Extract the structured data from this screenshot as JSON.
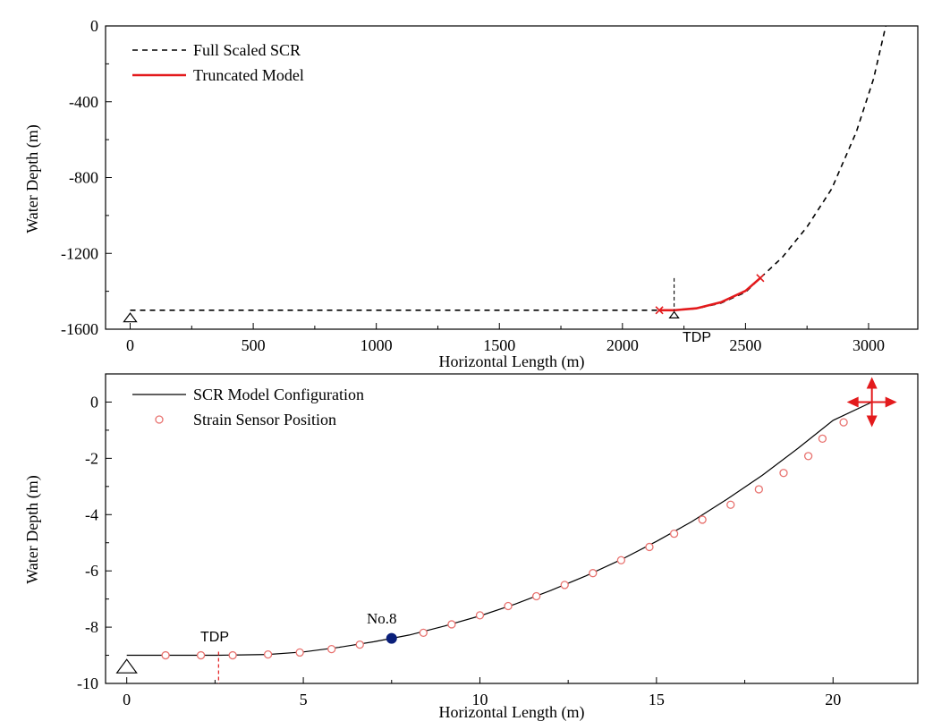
{
  "chart_data": [
    {
      "type": "line",
      "xlabel": "Horizontal Length (m)",
      "ylabel": "Water Depth (m)",
      "xlim": [
        -100,
        3200
      ],
      "ylim": [
        -1600,
        0
      ],
      "xticks": [
        0,
        500,
        1000,
        1500,
        2000,
        2500,
        3000
      ],
      "yticks": [
        0,
        -400,
        -800,
        -1200,
        -1600
      ],
      "xtick_labels": [
        "0",
        "500",
        "1000",
        "1500",
        "2000",
        "2500",
        "3000"
      ],
      "ytick_labels": [
        "0",
        "-400",
        "-800",
        "-1200",
        "-1600"
      ],
      "legend_position": "top-left",
      "series": [
        {
          "name": "Full Scaled SCR",
          "style": "dashed",
          "color": "#000000",
          "points": [
            [
              0,
              -1500
            ],
            [
              2150,
              -1500
            ],
            [
              2210,
              -1500
            ],
            [
              2300,
              -1492
            ],
            [
              2400,
              -1462
            ],
            [
              2500,
              -1405
            ],
            [
              2560,
              -1330
            ],
            [
              2650,
              -1220
            ],
            [
              2750,
              -1060
            ],
            [
              2850,
              -860
            ],
            [
              2950,
              -560
            ],
            [
              3020,
              -280
            ],
            [
              3070,
              0
            ]
          ]
        },
        {
          "name": "Truncated Model",
          "style": "solid",
          "color": "#e31a1c",
          "points": [
            [
              2150,
              -1500
            ],
            [
              2210,
              -1500
            ],
            [
              2300,
              -1490
            ],
            [
              2400,
              -1458
            ],
            [
              2500,
              -1398
            ],
            [
              2560,
              -1330
            ]
          ]
        }
      ],
      "markers": [
        {
          "kind": "x",
          "x": 2150,
          "y": -1500,
          "color": "#e31a1c"
        },
        {
          "kind": "x",
          "x": 2560,
          "y": -1330,
          "color": "#e31a1c"
        }
      ],
      "anchor": {
        "x": 0,
        "y": -1525
      },
      "tdp": {
        "label": "TDP",
        "x": 2210,
        "y": -1500
      }
    },
    {
      "type": "line",
      "xlabel": "Horizontal Length (m)",
      "ylabel": "Water Depth (m)",
      "xlim": [
        -0.6,
        22.4
      ],
      "ylim": [
        -10,
        1
      ],
      "xticks": [
        0,
        5,
        10,
        15,
        20
      ],
      "yticks": [
        0,
        -2,
        -4,
        -6,
        -8,
        -10
      ],
      "xtick_labels": [
        "0",
        "5",
        "10",
        "15",
        "20"
      ],
      "ytick_labels": [
        "0",
        "-2",
        "-4",
        "-6",
        "-8",
        "-10"
      ],
      "legend_position": "top-left",
      "series": [
        {
          "name": "SCR Model Configuration",
          "style": "solid",
          "color": "#000000",
          "points": [
            [
              0,
              -9.0
            ],
            [
              2.6,
              -9.0
            ],
            [
              4,
              -8.97
            ],
            [
              5,
              -8.88
            ],
            [
              6,
              -8.72
            ],
            [
              7,
              -8.52
            ],
            [
              8,
              -8.28
            ],
            [
              9,
              -7.96
            ],
            [
              10,
              -7.6
            ],
            [
              11,
              -7.18
            ],
            [
              12,
              -6.7
            ],
            [
              13,
              -6.18
            ],
            [
              14,
              -5.6
            ],
            [
              15,
              -4.95
            ],
            [
              16,
              -4.25
            ],
            [
              17,
              -3.45
            ],
            [
              18,
              -2.6
            ],
            [
              19,
              -1.65
            ],
            [
              20,
              -0.65
            ],
            [
              21.1,
              0.0
            ]
          ]
        },
        {
          "name": "Strain Sensor Position",
          "style": "markers",
          "color": "#e8726f",
          "points": [
            [
              1.1,
              -9.0
            ],
            [
              2.1,
              -9.0
            ],
            [
              3.0,
              -9.0
            ],
            [
              4.0,
              -8.97
            ],
            [
              4.9,
              -8.9
            ],
            [
              5.8,
              -8.78
            ],
            [
              6.6,
              -8.62
            ],
            [
              8.4,
              -8.2
            ],
            [
              9.2,
              -7.9
            ],
            [
              10.0,
              -7.58
            ],
            [
              10.8,
              -7.25
            ],
            [
              11.6,
              -6.9
            ],
            [
              12.4,
              -6.5
            ],
            [
              13.2,
              -6.08
            ],
            [
              14.0,
              -5.62
            ],
            [
              14.8,
              -5.15
            ],
            [
              15.5,
              -4.68
            ],
            [
              16.3,
              -4.18
            ],
            [
              17.1,
              -3.65
            ],
            [
              17.9,
              -3.1
            ],
            [
              18.6,
              -2.52
            ],
            [
              19.3,
              -1.92
            ],
            [
              19.7,
              -1.3
            ],
            [
              20.3,
              -0.72
            ]
          ]
        }
      ],
      "highlight": {
        "label": "No.8",
        "x": 7.5,
        "y": -8.4,
        "color": "#0a1f7a"
      },
      "anchor": {
        "x": 0,
        "y": -9.35
      },
      "tdp": {
        "label": "TDP",
        "x": 2.6,
        "y": -9.0
      },
      "motion_arrows": {
        "x": 21.1,
        "y": 0.0,
        "color": "#e31a1c"
      }
    }
  ]
}
